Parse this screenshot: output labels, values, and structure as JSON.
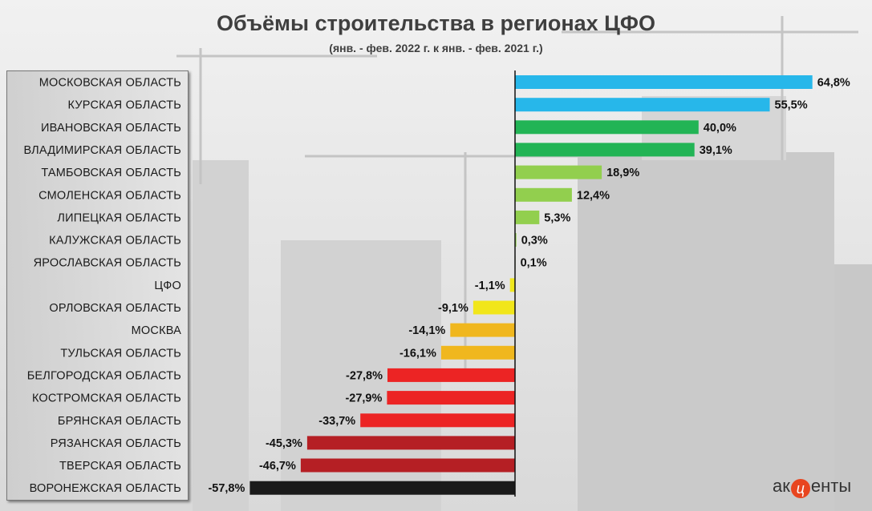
{
  "chart_data": {
    "type": "bar",
    "orientation": "horizontal",
    "title": "Объёмы строительства  в регионах ЦФО",
    "subtitle": "(янв. - фев. 2022 г. к янв. - фев. 2021 г.)",
    "value_suffix": "%",
    "xlim": [
      -57.8,
      64.8
    ],
    "categories": [
      "МОСКОВСКАЯ ОБЛАСТЬ",
      "КУРСКАЯ ОБЛАСТЬ",
      "ИВАНОВСКАЯ ОБЛАСТЬ",
      "ВЛАДИМИРСКАЯ ОБЛАСТЬ",
      "ТАМБОВСКАЯ ОБЛАСТЬ",
      "СМОЛЕНСКАЯ ОБЛАСТЬ",
      "ЛИПЕЦКАЯ ОБЛАСТЬ",
      "КАЛУЖСКАЯ ОБЛАСТЬ",
      "ЯРОСЛАВСКАЯ ОБЛАСТЬ",
      "ЦФО",
      "ОРЛОВСКАЯ ОБЛАСТЬ",
      "МОСКВА",
      "ТУЛЬСКАЯ ОБЛАСТЬ",
      "БЕЛГОРОДСКАЯ ОБЛАСТЬ",
      "КОСТРОМСКАЯ ОБЛАСТЬ",
      "БРЯНСКАЯ ОБЛАСТЬ",
      "РЯЗАНСКАЯ ОБЛАСТЬ",
      "ТВЕРСКАЯ ОБЛАСТЬ",
      "ВОРОНЕЖСКАЯ ОБЛАСТЬ"
    ],
    "values": [
      64.8,
      55.5,
      40.0,
      39.1,
      18.9,
      12.4,
      5.3,
      0.3,
      0.1,
      -1.1,
      -9.1,
      -14.1,
      -16.1,
      -27.8,
      -27.9,
      -33.7,
      -45.3,
      -46.7,
      -57.8
    ],
    "value_labels": [
      "64,8%",
      "55,5%",
      "40,0%",
      "39,1%",
      "18,9%",
      "12,4%",
      "5,3%",
      "0,3%",
      "0,1%",
      "-1,1%",
      "-9,1%",
      "-14,1%",
      "-16,1%",
      "-27,8%",
      "-27,9%",
      "-33,7%",
      "-45,3%",
      "-46,7%",
      "-57,8%"
    ],
    "colors": [
      "#27b7ea",
      "#27b7ea",
      "#22b455",
      "#22b455",
      "#92cf4e",
      "#92cf4e",
      "#92cf4e",
      "#92cf4e",
      "#92cf4e",
      "#f0e81e",
      "#f1e61a",
      "#f0b71e",
      "#f0b71e",
      "#ec2424",
      "#ec2424",
      "#ec2424",
      "#b51f24",
      "#b51f24",
      "#1a1a1a"
    ],
    "grid": false,
    "legend": "none"
  },
  "logo": {
    "left": "ак",
    "mid": "ц",
    "right": "енты"
  }
}
